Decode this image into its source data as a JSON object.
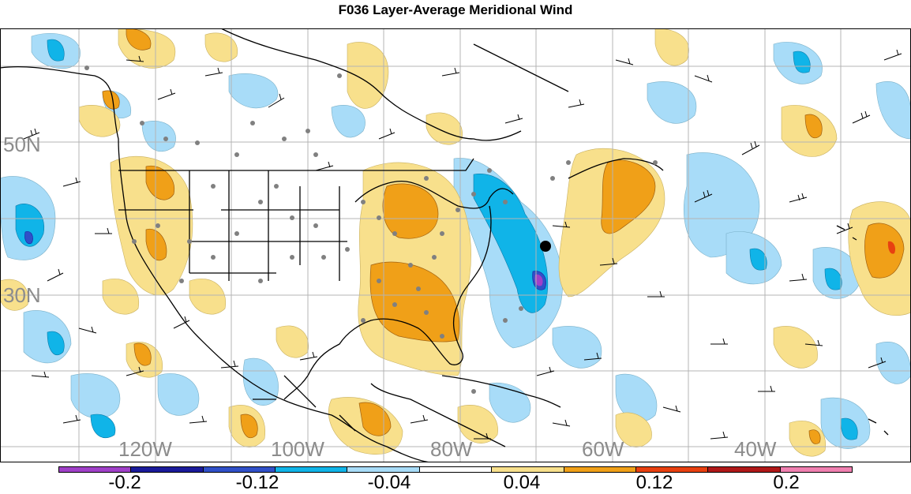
{
  "title": "F036 Layer-Average Meridional Wind",
  "lat_labels": [
    "50N",
    "30N"
  ],
  "lon_labels": [
    "120W",
    "100W",
    "80W",
    "60W",
    "40W"
  ],
  "colorbar": {
    "labels": [
      "-0.2",
      "-0.12",
      "-0.04",
      "0.04",
      "0.12",
      "0.2"
    ],
    "colors": [
      "#a040c8",
      "#1a1a9a",
      "#3050c8",
      "#10b4e8",
      "#a8dcf8",
      "#ffffff",
      "#f8e08c",
      "#f0a018",
      "#e84010",
      "#b01818",
      "#f080b0"
    ]
  },
  "map_colors": {
    "orange": "#f0a018",
    "yellow": "#f8e08c",
    "light_blue": "#a8dcf8",
    "blue": "#10b4e8",
    "dark_blue": "#3050c8",
    "purple": "#a040c8",
    "dot": "#808080",
    "land_line": "#000000",
    "grid": "#b4b4b4",
    "label": "#8c8c8c"
  },
  "marker": "black-dot-station"
}
